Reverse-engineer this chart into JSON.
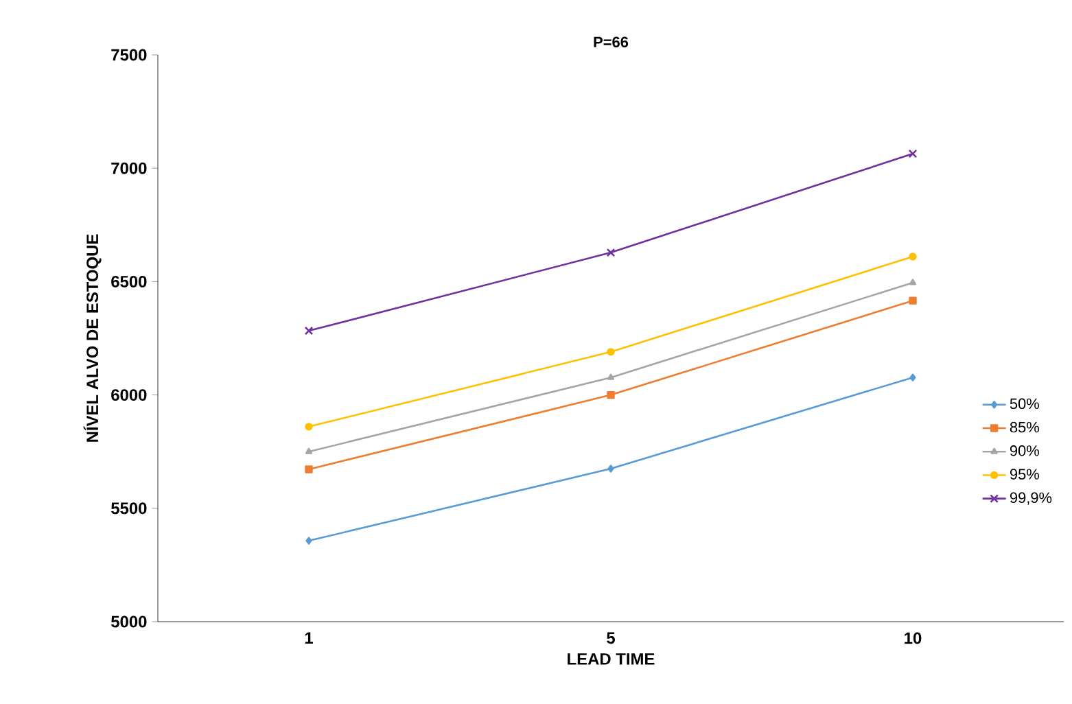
{
  "chart_data": {
    "type": "line",
    "title": "P=66",
    "xlabel": "LEAD TIME",
    "ylabel": "NÍVEL ALVO DE ESTOQUE",
    "categories": [
      "1",
      "5",
      "10"
    ],
    "series": [
      {
        "name": "50%",
        "color": "#5b9bd5",
        "marker": "diamond",
        "values": [
          5357,
          5675,
          6077
        ]
      },
      {
        "name": "85%",
        "color": "#ed7d31",
        "marker": "square",
        "values": [
          5672,
          6000,
          6416
        ]
      },
      {
        "name": "90%",
        "color": "#a5a5a5",
        "marker": "triangle",
        "values": [
          5750,
          6077,
          6495
        ]
      },
      {
        "name": "95%",
        "color": "#ffc000",
        "marker": "circle",
        "values": [
          5860,
          6190,
          6610
        ]
      },
      {
        "name": "99,9%",
        "color": "#7030a0",
        "marker": "cross",
        "values": [
          6283,
          6628,
          7064
        ]
      }
    ],
    "ylim": [
      5000,
      7500
    ],
    "yticks": [
      5000,
      5500,
      6000,
      6500,
      7000,
      7500
    ],
    "grid": false,
    "legend": "right",
    "line_style": "solid"
  }
}
